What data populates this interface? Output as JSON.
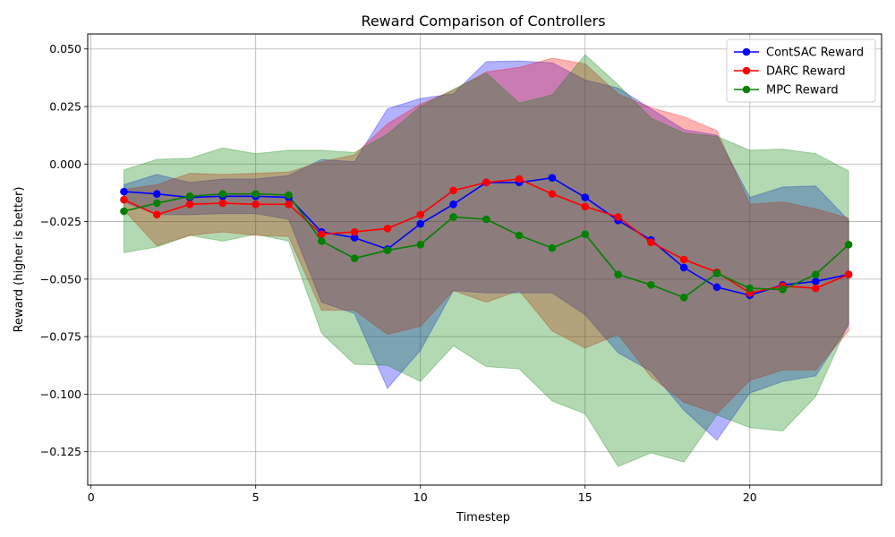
{
  "chart_data": {
    "type": "line",
    "title": "Reward Comparison of Controllers",
    "xlabel": "Timestep",
    "ylabel": "Reward (higher is better)",
    "xlim": [
      -0.1,
      24.0
    ],
    "ylim": [
      -0.1395,
      0.0565
    ],
    "xticks": [
      0,
      5,
      10,
      15,
      20
    ],
    "yticks": [
      0.05,
      0.025,
      0.0,
      -0.025,
      -0.05,
      -0.075,
      -0.1,
      -0.125
    ],
    "ytick_labels": [
      "0.050",
      "0.025",
      "0.000",
      "−0.025",
      "−0.050",
      "−0.075",
      "−0.100",
      "−0.125"
    ],
    "grid": true,
    "legend_position": "top-right",
    "x": [
      1,
      2,
      3,
      4,
      5,
      6,
      7,
      8,
      9,
      10,
      11,
      12,
      13,
      14,
      15,
      16,
      17,
      18,
      19,
      20,
      21,
      22,
      23
    ],
    "series": [
      {
        "name": "ContSAC Reward",
        "color": "#0000ff",
        "values": [
          -0.012,
          -0.013,
          -0.0145,
          -0.014,
          -0.014,
          -0.0145,
          -0.0295,
          -0.032,
          -0.037,
          -0.026,
          -0.0175,
          -0.008,
          -0.008,
          -0.006,
          -0.0145,
          -0.0245,
          -0.033,
          -0.045,
          -0.0535,
          -0.057,
          -0.0525,
          -0.051,
          -0.048
        ],
        "upper": [
          -0.009,
          -0.0045,
          -0.008,
          -0.0065,
          -0.0065,
          -0.005,
          0.002,
          0.001,
          0.024,
          0.0285,
          0.0305,
          0.0445,
          0.0448,
          0.044,
          0.0365,
          0.033,
          0.024,
          0.015,
          0.0125,
          -0.0145,
          -0.01,
          -0.0095,
          -0.0245
        ],
        "lower": [
          -0.0165,
          -0.022,
          -0.022,
          -0.0215,
          -0.0215,
          -0.024,
          -0.06,
          -0.065,
          -0.0975,
          -0.081,
          -0.055,
          -0.056,
          -0.056,
          -0.056,
          -0.0655,
          -0.082,
          -0.09,
          -0.107,
          -0.12,
          -0.0995,
          -0.0945,
          -0.092,
          -0.07
        ]
      },
      {
        "name": "DARC Reward",
        "color": "#ff0000",
        "values": [
          -0.0155,
          -0.022,
          -0.0175,
          -0.017,
          -0.0175,
          -0.0175,
          -0.0305,
          -0.0295,
          -0.028,
          -0.022,
          -0.0115,
          -0.008,
          -0.0065,
          -0.013,
          -0.0185,
          -0.023,
          -0.034,
          -0.0415,
          -0.047,
          -0.056,
          -0.053,
          -0.054,
          -0.048
        ],
        "upper": [
          -0.011,
          -0.009,
          -0.004,
          -0.0045,
          -0.004,
          -0.0035,
          0.001,
          0.004,
          0.0175,
          0.026,
          0.032,
          0.04,
          0.042,
          0.046,
          0.0435,
          0.0305,
          0.0245,
          0.0205,
          0.0145,
          -0.0175,
          -0.0165,
          -0.0195,
          -0.0235
        ],
        "lower": [
          -0.02,
          -0.0355,
          -0.031,
          -0.0295,
          -0.031,
          -0.0315,
          -0.0635,
          -0.0635,
          -0.074,
          -0.0705,
          -0.055,
          -0.06,
          -0.055,
          -0.0725,
          -0.08,
          -0.074,
          -0.0925,
          -0.1035,
          -0.1085,
          -0.094,
          -0.0895,
          -0.0895,
          -0.0725
        ]
      },
      {
        "name": "MPC Reward",
        "color": "#008000",
        "values": [
          -0.0205,
          -0.017,
          -0.014,
          -0.013,
          -0.013,
          -0.0135,
          -0.0335,
          -0.041,
          -0.0375,
          -0.035,
          -0.023,
          -0.024,
          -0.031,
          -0.0365,
          -0.0305,
          -0.048,
          -0.0525,
          -0.058,
          -0.0475,
          -0.054,
          -0.0545,
          -0.048,
          -0.035
        ],
        "upper": [
          -0.0025,
          0.002,
          0.0025,
          0.007,
          0.0045,
          0.006,
          0.006,
          0.005,
          0.013,
          0.025,
          0.0325,
          0.0395,
          0.0265,
          0.03,
          0.0475,
          0.0345,
          0.02,
          0.0135,
          0.012,
          0.006,
          0.0065,
          0.0045,
          -0.003
        ],
        "lower": [
          -0.0385,
          -0.036,
          -0.031,
          -0.0335,
          -0.0305,
          -0.0335,
          -0.0735,
          -0.087,
          -0.0875,
          -0.0945,
          -0.079,
          -0.088,
          -0.089,
          -0.103,
          -0.1085,
          -0.1315,
          -0.1255,
          -0.1295,
          -0.109,
          -0.1145,
          -0.116,
          -0.101,
          -0.069
        ]
      }
    ]
  }
}
